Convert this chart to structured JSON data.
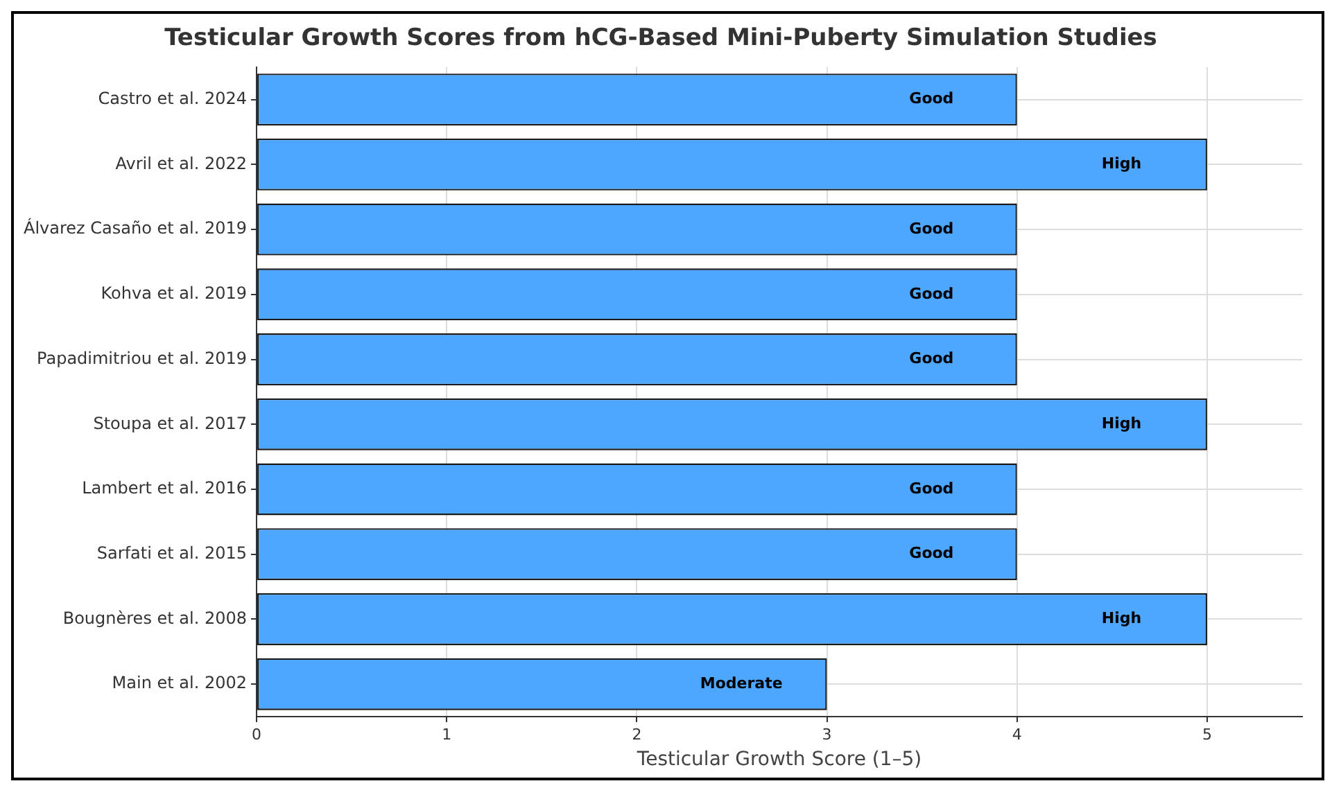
{
  "chart_data": {
    "type": "bar",
    "orientation": "horizontal",
    "title": "Testicular Growth Scores from hCG-Based Mini-Puberty Simulation Studies",
    "xlabel": "Testicular Growth Score (1–5)",
    "categories": [
      "Castro et al. 2024",
      "Avril et al. 2022",
      "Álvarez Casaño et al. 2019",
      "Kohva et al. 2019",
      "Papadimitriou et al. 2019",
      "Stoupa et al. 2017",
      "Lambert et al. 2016",
      "Sarfati et al. 2015",
      "Bougnères et al. 2008",
      "Main et al. 2002"
    ],
    "values": [
      4,
      5,
      4,
      4,
      4,
      5,
      4,
      4,
      5,
      3
    ],
    "value_labels": [
      "Good",
      "High",
      "Good",
      "Good",
      "Good",
      "High",
      "Good",
      "Good",
      "High",
      "Moderate"
    ],
    "color": "#4da6ff",
    "xlim": [
      0,
      5.5
    ],
    "xticks": [
      0,
      1,
      2,
      3,
      4,
      5
    ],
    "grid": true
  }
}
